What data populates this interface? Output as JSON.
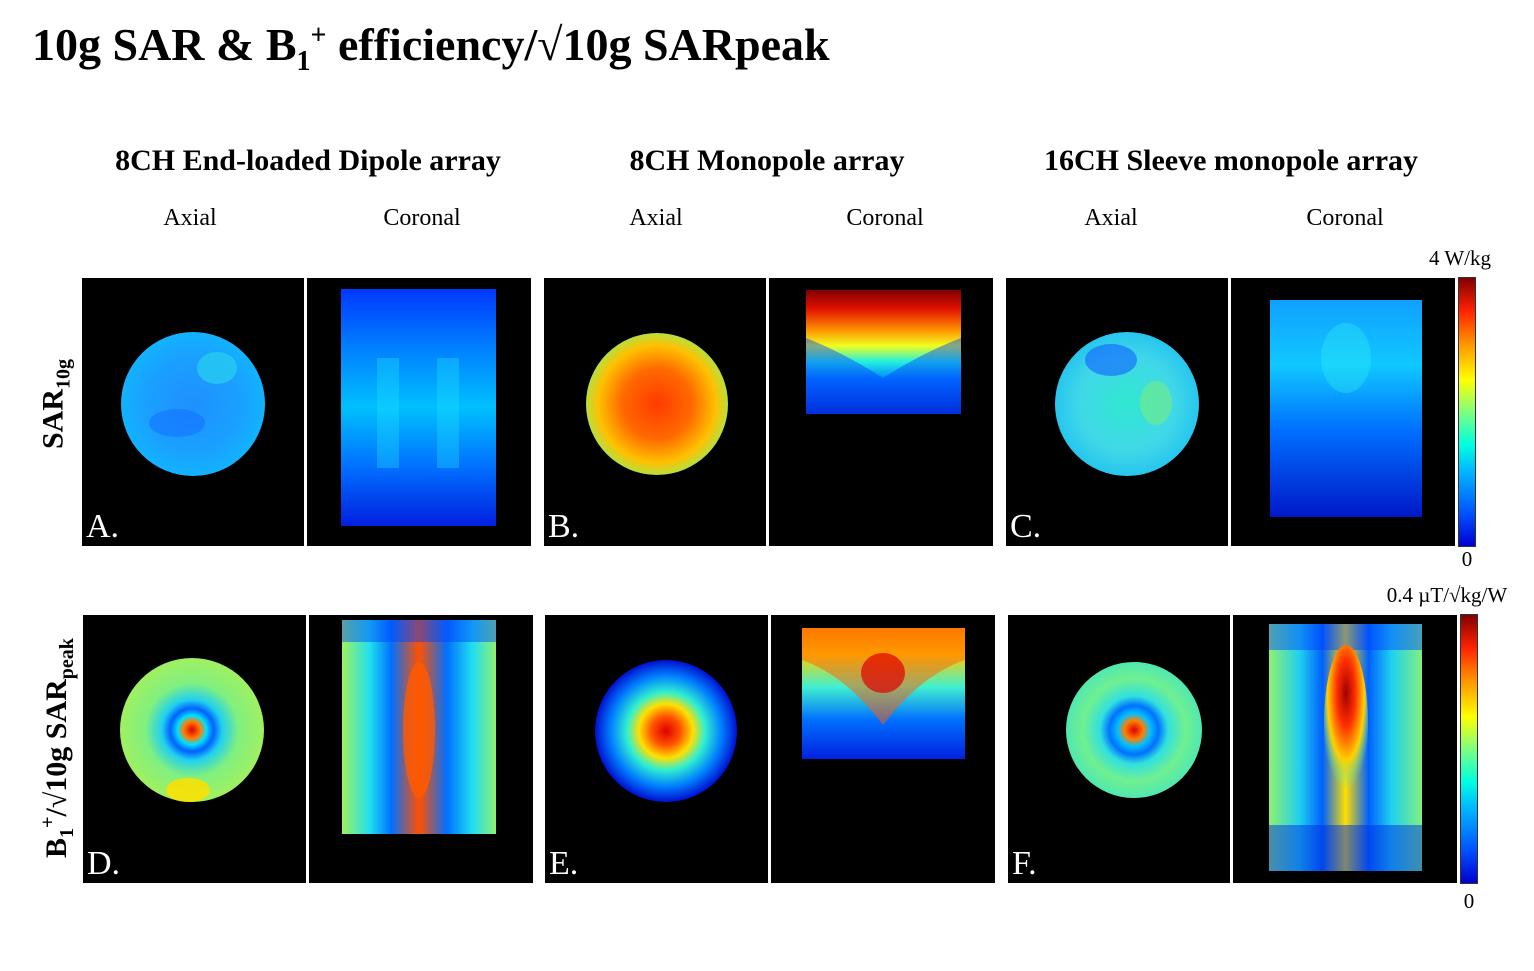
{
  "title": {
    "prefix": "10g SAR & B",
    "sub": "1",
    "sup": "+",
    "suffix": " efficiency/√10g SARpeak"
  },
  "groups": [
    {
      "title": "8CH End-loaded Dipole array",
      "axial": "Axial",
      "coronal": "Coronal"
    },
    {
      "title": "8CH Monopole array",
      "axial": "Axial",
      "coronal": "Coronal"
    },
    {
      "title": "16CH Sleeve monopole array",
      "axial": "Axial",
      "coronal": "Coronal"
    }
  ],
  "rows": {
    "sar": {
      "main": "SAR",
      "sub": "10g"
    },
    "eff": {
      "b": "B",
      "sub": "1",
      "sup": "+",
      "mid": "/√10g SAR",
      "sub2": "peak"
    }
  },
  "panel_letters": [
    "A.",
    "B.",
    "C.",
    "D.",
    "E.",
    "F."
  ],
  "colorbars": {
    "sar": {
      "max": "4 W/kg",
      "min": "0"
    },
    "eff": {
      "max": "0.4 µT/√kg/W",
      "min": "0"
    }
  }
}
